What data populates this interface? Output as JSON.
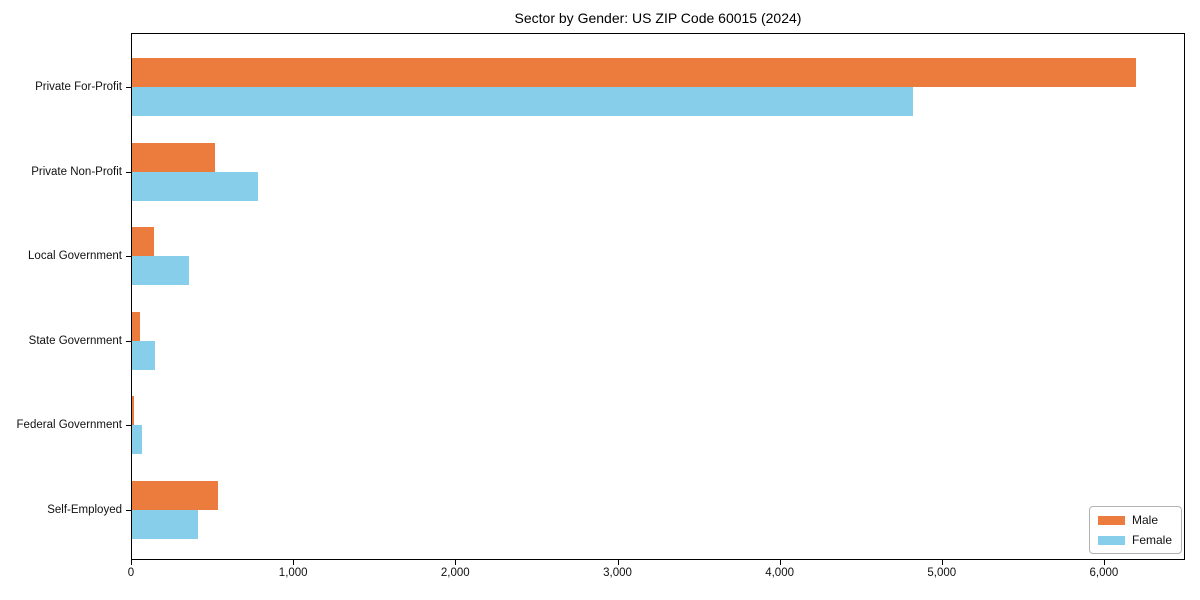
{
  "chart_data": {
    "type": "bar",
    "orientation": "horizontal",
    "title": "Sector by Gender: US ZIP Code 60015 (2024)",
    "categories": [
      "Private For-Profit",
      "Private Non-Profit",
      "Local Government",
      "State Government",
      "Federal Government",
      "Self-Employed"
    ],
    "series": [
      {
        "name": "Male",
        "color": "#ec7c3d",
        "values": [
          6200,
          520,
          140,
          55,
          20,
          535
        ]
      },
      {
        "name": "Female",
        "color": "#87ceeb",
        "values": [
          4820,
          785,
          355,
          150,
          70,
          410
        ]
      }
    ],
    "xlim": [
      0,
      6500
    ],
    "x_ticks": [
      0,
      1000,
      2000,
      3000,
      4000,
      5000,
      6000
    ],
    "x_tick_labels": [
      "0",
      "1,000",
      "2,000",
      "3,000",
      "4,000",
      "5,000",
      "6,000"
    ],
    "ylabel": "",
    "xlabel": "",
    "grid": false,
    "legend": {
      "position": "lower right"
    },
    "colors": {
      "background": "#ffffff",
      "axis": "#000000",
      "text": "#111111"
    }
  }
}
